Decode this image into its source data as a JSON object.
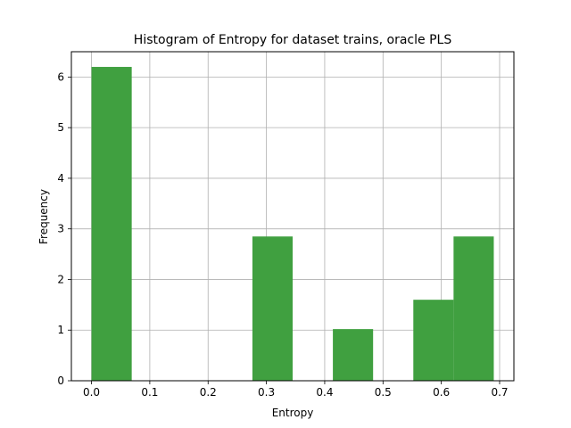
{
  "chart_data": {
    "type": "bar",
    "title": "Histogram of Entropy for dataset trains, oracle PLS",
    "xlabel": "Entropy",
    "ylabel": "Frequency",
    "xlim": [
      -0.0345,
      0.7245
    ],
    "ylim": [
      0,
      6.5
    ],
    "xticks": [
      "0.0",
      "0.1",
      "0.2",
      "0.3",
      "0.4",
      "0.5",
      "0.6",
      "0.7"
    ],
    "yticks": [
      "0",
      "1",
      "2",
      "3",
      "4",
      "5",
      "6"
    ],
    "bins": [
      {
        "x0": 0.0,
        "x1": 0.069,
        "value": 6.2
      },
      {
        "x0": 0.069,
        "x1": 0.138,
        "value": 0
      },
      {
        "x0": 0.138,
        "x1": 0.207,
        "value": 0
      },
      {
        "x0": 0.207,
        "x1": 0.276,
        "value": 0
      },
      {
        "x0": 0.276,
        "x1": 0.345,
        "value": 2.85
      },
      {
        "x0": 0.345,
        "x1": 0.414,
        "value": 0
      },
      {
        "x0": 0.414,
        "x1": 0.483,
        "value": 1.02
      },
      {
        "x0": 0.483,
        "x1": 0.552,
        "value": 0
      },
      {
        "x0": 0.552,
        "x1": 0.621,
        "value": 1.6
      },
      {
        "x0": 0.621,
        "x1": 0.69,
        "value": 2.85
      }
    ],
    "bar_color": "#40a040",
    "grid": true
  }
}
